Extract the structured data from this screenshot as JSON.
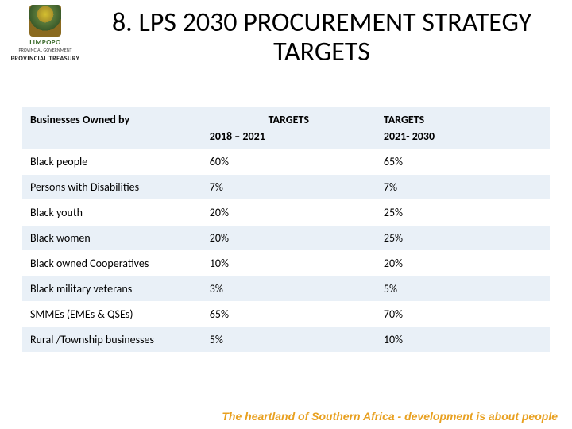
{
  "logo": {
    "limpopo": "LIMPOPO",
    "provincial": "PROVINCIAL GOVERNMENT",
    "treasury": "PROVINCIAL TREASURY"
  },
  "title": "8. LPS 2030 PROCUREMENT STRATEGY TARGETS",
  "table": {
    "header": {
      "owner": "Businesses Owned by",
      "targets_label": "TARGETS",
      "period1": "2018 – 2021",
      "period2": "2021- 2030"
    },
    "rows": [
      {
        "label": "Black people",
        "t1": "60%",
        "t2": "65%"
      },
      {
        "label": "Persons with Disabilities",
        "t1": "7%",
        "t2": "7%"
      },
      {
        "label": "Black youth",
        "t1": "20%",
        "t2": "25%"
      },
      {
        "label": "Black women",
        "t1": "20%",
        "t2": "25%"
      },
      {
        "label": "Black owned Cooperatives",
        "t1": "10%",
        "t2": "20%"
      },
      {
        "label": "Black military veterans",
        "t1": "3%",
        "t2": "5%"
      },
      {
        "label": "SMMEs (EMEs & QSEs)",
        "t1": "65%",
        "t2": "70%"
      },
      {
        "label": "Rural /Township businesses",
        "t1": "5%",
        "t2": "10%"
      }
    ]
  },
  "footer": "The heartland of Southern Africa - development is about people"
}
